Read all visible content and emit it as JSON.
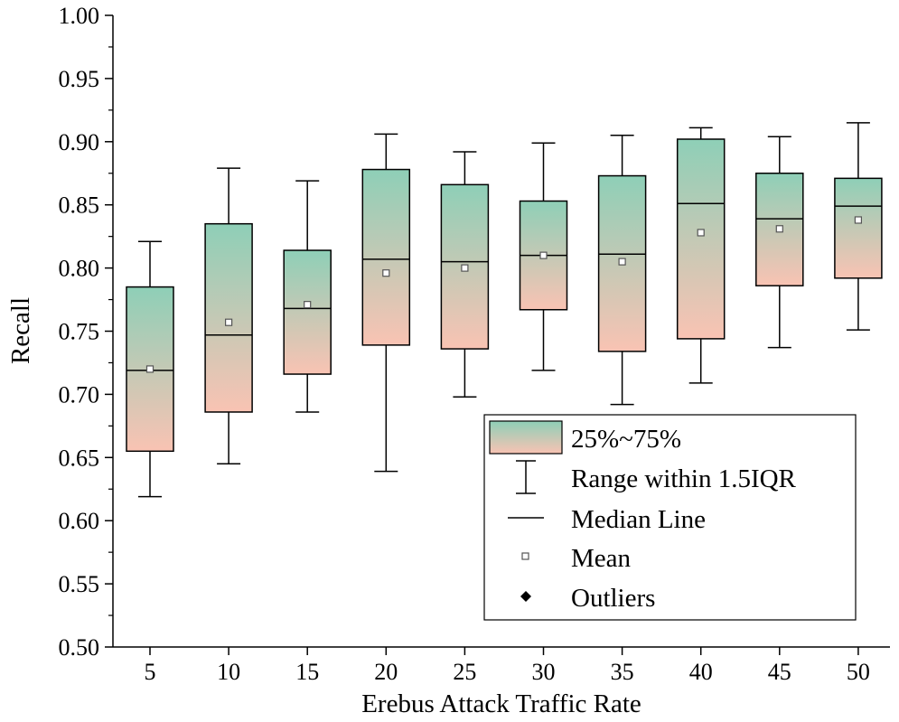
{
  "chart_data": {
    "type": "box",
    "title": "",
    "xlabel": "Erebus Attack Traffic Rate",
    "ylabel": "Recall",
    "ylim": [
      0.5,
      1.0
    ],
    "y_ticks": [
      "0.50",
      "0.55",
      "0.60",
      "0.65",
      "0.70",
      "0.75",
      "0.80",
      "0.85",
      "0.90",
      "0.95",
      "1.00"
    ],
    "categories": [
      "5",
      "10",
      "15",
      "20",
      "25",
      "30",
      "35",
      "40",
      "45",
      "50"
    ],
    "boxes": [
      {
        "category": "5",
        "whisker_low": 0.619,
        "q1": 0.655,
        "median": 0.719,
        "mean": 0.72,
        "q3": 0.785,
        "whisker_high": 0.821
      },
      {
        "category": "10",
        "whisker_low": 0.645,
        "q1": 0.686,
        "median": 0.747,
        "mean": 0.757,
        "q3": 0.835,
        "whisker_high": 0.879
      },
      {
        "category": "15",
        "whisker_low": 0.686,
        "q1": 0.716,
        "median": 0.768,
        "mean": 0.771,
        "q3": 0.814,
        "whisker_high": 0.869
      },
      {
        "category": "20",
        "whisker_low": 0.639,
        "q1": 0.739,
        "median": 0.807,
        "mean": 0.796,
        "q3": 0.878,
        "whisker_high": 0.906
      },
      {
        "category": "25",
        "whisker_low": 0.698,
        "q1": 0.736,
        "median": 0.805,
        "mean": 0.8,
        "q3": 0.866,
        "whisker_high": 0.892
      },
      {
        "category": "30",
        "whisker_low": 0.719,
        "q1": 0.767,
        "median": 0.81,
        "mean": 0.81,
        "q3": 0.853,
        "whisker_high": 0.899
      },
      {
        "category": "35",
        "whisker_low": 0.692,
        "q1": 0.734,
        "median": 0.811,
        "mean": 0.805,
        "q3": 0.873,
        "whisker_high": 0.905
      },
      {
        "category": "40",
        "whisker_low": 0.709,
        "q1": 0.744,
        "median": 0.851,
        "mean": 0.828,
        "q3": 0.902,
        "whisker_high": 0.911
      },
      {
        "category": "45",
        "whisker_low": 0.737,
        "q1": 0.786,
        "median": 0.839,
        "mean": 0.831,
        "q3": 0.875,
        "whisker_high": 0.904
      },
      {
        "category": "50",
        "whisker_low": 0.751,
        "q1": 0.792,
        "median": 0.849,
        "mean": 0.838,
        "q3": 0.871,
        "whisker_high": 0.915
      }
    ],
    "legend": {
      "position": "lower-right",
      "items": [
        "25%~75%",
        "Range within 1.5IQR",
        "Median Line",
        "Mean",
        "Outliers"
      ]
    },
    "colors": {
      "box_top": "#8ecfb7",
      "box_bottom": "#f9c3b3",
      "line": "#000000",
      "mean_marker": "#555555"
    }
  }
}
